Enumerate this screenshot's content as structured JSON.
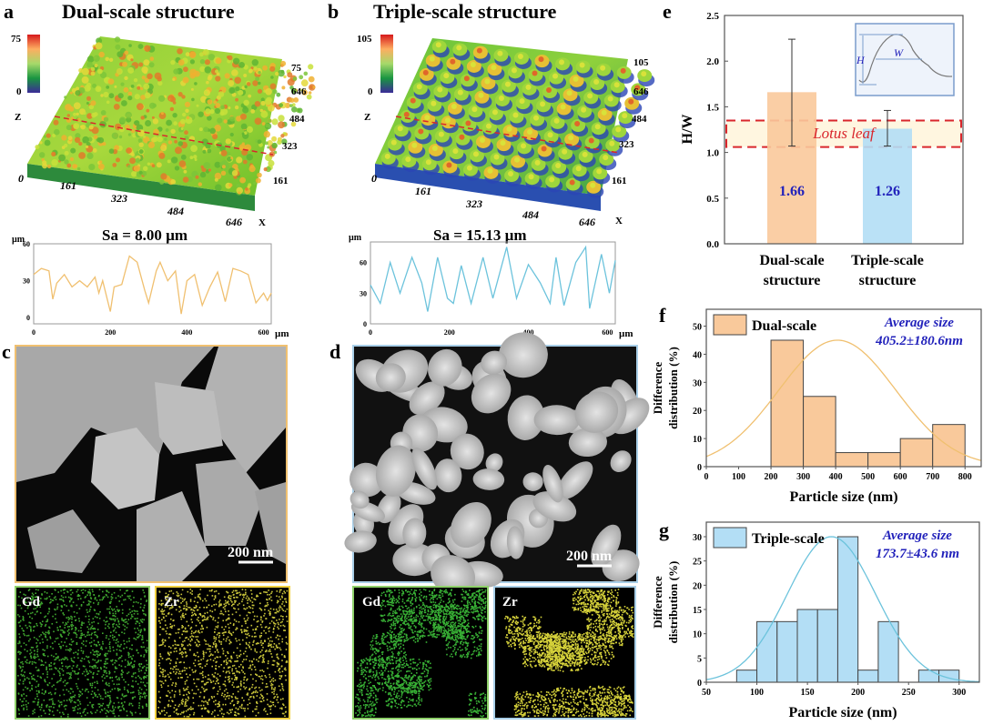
{
  "panels": {
    "a": {
      "letter": "a",
      "title": "Dual-scale structure",
      "colorbar_max": "75",
      "colorbar_min": "0",
      "z_label": "Z",
      "x_label": "X",
      "x_ticks": [
        "0",
        "161",
        "323",
        "484",
        "646"
      ],
      "y_ticks": [
        "75",
        "646",
        "484",
        "323",
        "161"
      ],
      "sa": "Sa = 8.00 µm"
    },
    "b": {
      "letter": "b",
      "title": "Triple-scale structure",
      "colorbar_max": "105",
      "colorbar_min": "0",
      "z_label": "Z",
      "x_label": "X",
      "x_ticks": [
        "0",
        "161",
        "323",
        "484",
        "646"
      ],
      "y_ticks": [
        "105",
        "646",
        "484",
        "323",
        "161"
      ],
      "sa": "Sa = 15.13 µm"
    },
    "c": {
      "letter": "c",
      "scale_bar": "200 nm",
      "map1": "Gd",
      "map2": "Zr"
    },
    "d": {
      "letter": "d",
      "scale_bar": "200 nm",
      "map1": "Gd",
      "map2": "Zr"
    },
    "e": {
      "letter": "e"
    },
    "f": {
      "letter": "f"
    },
    "g": {
      "letter": "g"
    }
  },
  "colors": {
    "dual": "#f9c99b",
    "triple": "#b3def5",
    "dual_line": "#f0c070",
    "triple_line": "#6cc3dc",
    "lotus": "#d9262c",
    "annot": "#2222bb"
  },
  "chart_data": [
    {
      "id": "profile-a",
      "type": "line",
      "ylabel": "µm",
      "xlabel": "µm",
      "xlim": [
        0,
        620
      ],
      "ylim": [
        -5,
        60
      ],
      "x_ticks": [
        0,
        200,
        400,
        600
      ],
      "y_ticks": [
        0,
        30,
        60
      ],
      "x": [
        0,
        20,
        40,
        50,
        60,
        80,
        100,
        120,
        140,
        160,
        170,
        180,
        200,
        210,
        230,
        250,
        270,
        290,
        300,
        320,
        330,
        350,
        370,
        385,
        400,
        420,
        440,
        460,
        480,
        500,
        520,
        540,
        560,
        580,
        600,
        610,
        620
      ],
      "y": [
        35,
        40,
        38,
        15,
        28,
        35,
        25,
        30,
        25,
        33,
        20,
        30,
        5,
        25,
        27,
        50,
        45,
        22,
        12,
        38,
        45,
        30,
        38,
        3,
        30,
        35,
        10,
        25,
        37,
        13,
        40,
        38,
        35,
        12,
        20,
        14,
        20
      ]
    },
    {
      "id": "profile-b",
      "type": "line",
      "ylabel": "µm",
      "xlabel": "µm",
      "xlim": [
        0,
        620
      ],
      "ylim": [
        0,
        80
      ],
      "x_ticks": [
        0,
        200,
        400,
        600
      ],
      "y_ticks": [
        0,
        30,
        60
      ],
      "x": [
        0,
        25,
        50,
        75,
        105,
        130,
        145,
        170,
        195,
        210,
        230,
        255,
        285,
        310,
        345,
        370,
        400,
        430,
        455,
        470,
        490,
        520,
        545,
        555,
        585,
        605,
        620
      ],
      "y": [
        38,
        20,
        60,
        30,
        65,
        40,
        12,
        65,
        25,
        20,
        57,
        20,
        65,
        25,
        75,
        25,
        58,
        40,
        20,
        65,
        18,
        60,
        75,
        15,
        68,
        30,
        62
      ]
    },
    {
      "id": "e",
      "type": "bar",
      "categories": [
        "Dual-scale structure",
        "Triple-scale structure"
      ],
      "category_lines": [
        [
          "Dual-scale",
          "structure"
        ],
        [
          "Triple-scale",
          "structure"
        ]
      ],
      "values": [
        1.66,
        1.26
      ],
      "value_labels": [
        "1.66",
        "1.26"
      ],
      "error_low": [
        1.07,
        1.07
      ],
      "error_high": [
        2.24,
        1.46
      ],
      "ylabel": "H/W",
      "ylim": [
        0,
        2.5
      ],
      "y_ticks": [
        "0.0",
        "0.5",
        "1.0",
        "1.5",
        "2.0",
        "2.5"
      ],
      "band": {
        "label": "Lotus leaf",
        "range": [
          1.06,
          1.35
        ]
      },
      "inset": {
        "h_label": "H",
        "w_label": "W"
      }
    },
    {
      "id": "f",
      "type": "bar",
      "title": "",
      "legend": "Dual-scale",
      "legend_position": "top-left",
      "annotation": [
        "Average size",
        "405.2±180.6nm"
      ],
      "mean": 405.2,
      "sd": 180.6,
      "bins": [
        [
          200,
          300
        ],
        [
          300,
          400
        ],
        [
          400,
          500
        ],
        [
          500,
          600
        ],
        [
          600,
          700
        ],
        [
          700,
          800
        ]
      ],
      "values": [
        45,
        25,
        5,
        5,
        10,
        15
      ],
      "xlabel": "Particle size (nm)",
      "ylabel": [
        "Difference",
        "distribution (%)"
      ],
      "xlim": [
        0,
        850
      ],
      "ylim": [
        0,
        56
      ],
      "x_ticks": [
        0,
        100,
        200,
        300,
        400,
        500,
        600,
        700,
        800
      ],
      "y_ticks": [
        0,
        10,
        20,
        30,
        40,
        50
      ],
      "fit_peak": 45
    },
    {
      "id": "g",
      "type": "bar",
      "title": "",
      "legend": "Triple-scale",
      "legend_position": "top-left",
      "annotation": [
        "Average size",
        "173.7±43.6 nm"
      ],
      "mean": 173.7,
      "sd": 43.6,
      "bins": [
        [
          80,
          100
        ],
        [
          100,
          120
        ],
        [
          120,
          140
        ],
        [
          140,
          160
        ],
        [
          160,
          180
        ],
        [
          180,
          200
        ],
        [
          200,
          220
        ],
        [
          220,
          240
        ],
        [
          260,
          280
        ],
        [
          280,
          300
        ]
      ],
      "values": [
        2.5,
        12.5,
        12.5,
        15,
        15,
        30,
        2.5,
        12.5,
        2.5,
        2.5
      ],
      "xlabel": "Particle size (nm)",
      "ylabel": [
        "Difference",
        "distribution (%)"
      ],
      "xlim": [
        50,
        320
      ],
      "ylim": [
        0,
        33
      ],
      "x_ticks": [
        50,
        100,
        150,
        200,
        250,
        300
      ],
      "y_ticks": [
        0,
        5,
        10,
        15,
        20,
        25,
        30
      ],
      "fit_peak": 30
    }
  ]
}
